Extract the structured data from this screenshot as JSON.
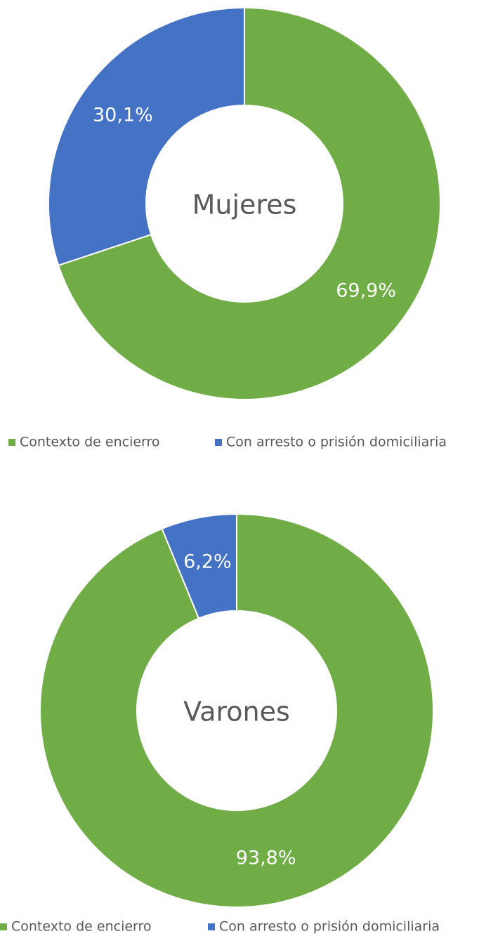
{
  "chart_data": [
    {
      "type": "pie",
      "title": "Mujeres",
      "categories": [
        "Contexto de encierro",
        "Con arresto o prisión domiciliaria"
      ],
      "values": [
        69.9,
        30.1
      ],
      "value_labels": [
        "69,9%",
        "30,1%"
      ],
      "colors": [
        "#70ad47",
        "#4472c4"
      ]
    },
    {
      "type": "pie",
      "title": "Varones",
      "categories": [
        "Contexto de encierro",
        "Con arresto o prisión domiciliaria"
      ],
      "values": [
        93.8,
        6.2
      ],
      "value_labels": [
        "93,8%",
        "6,2%"
      ],
      "colors": [
        "#70ad47",
        "#4472c4"
      ]
    }
  ]
}
